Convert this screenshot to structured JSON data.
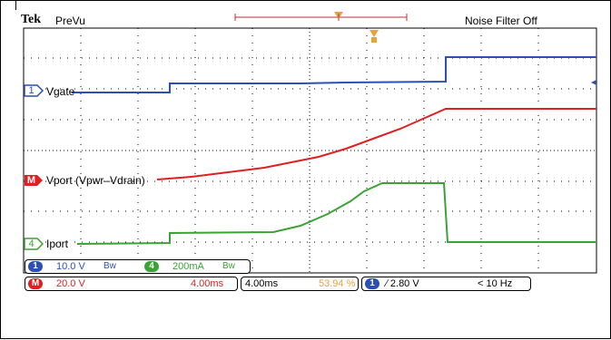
{
  "header": {
    "brand": "Tek",
    "mode": "PreVu",
    "noise_filter": "Noise Filter Off"
  },
  "channels": {
    "ch1": {
      "badge": "1",
      "label": "Vgate",
      "color": "#2b4fb5"
    },
    "math": {
      "badge": "M",
      "label": "Vport (Vpwr–Vdrain)",
      "color": "#e02020"
    },
    "ch4": {
      "badge": "4",
      "label": "Iport",
      "color": "#3aa334"
    }
  },
  "status": {
    "ch1_badge": "1",
    "ch1_scale": "10.0 V",
    "ch1_bw": "Bᴡ",
    "ch4_badge": "4",
    "ch4_scale": "200mA",
    "ch4_bw": "Bᴡ",
    "math_badge": "M",
    "math_scale": "20.0 V",
    "math_time": "4.00ms",
    "timebase": "4.00ms",
    "trigger_pos": "53.94 %",
    "trig_badge": "1",
    "trig_level": "∕ 2.80 V",
    "trig_freq": "< 10 Hz"
  },
  "colors": {
    "ch1": "#2b4fb5",
    "math": "#e02020",
    "ch4": "#3aa334",
    "trigger_marker": "#e8a33a",
    "timebase_pct": "#e8a33a"
  }
}
